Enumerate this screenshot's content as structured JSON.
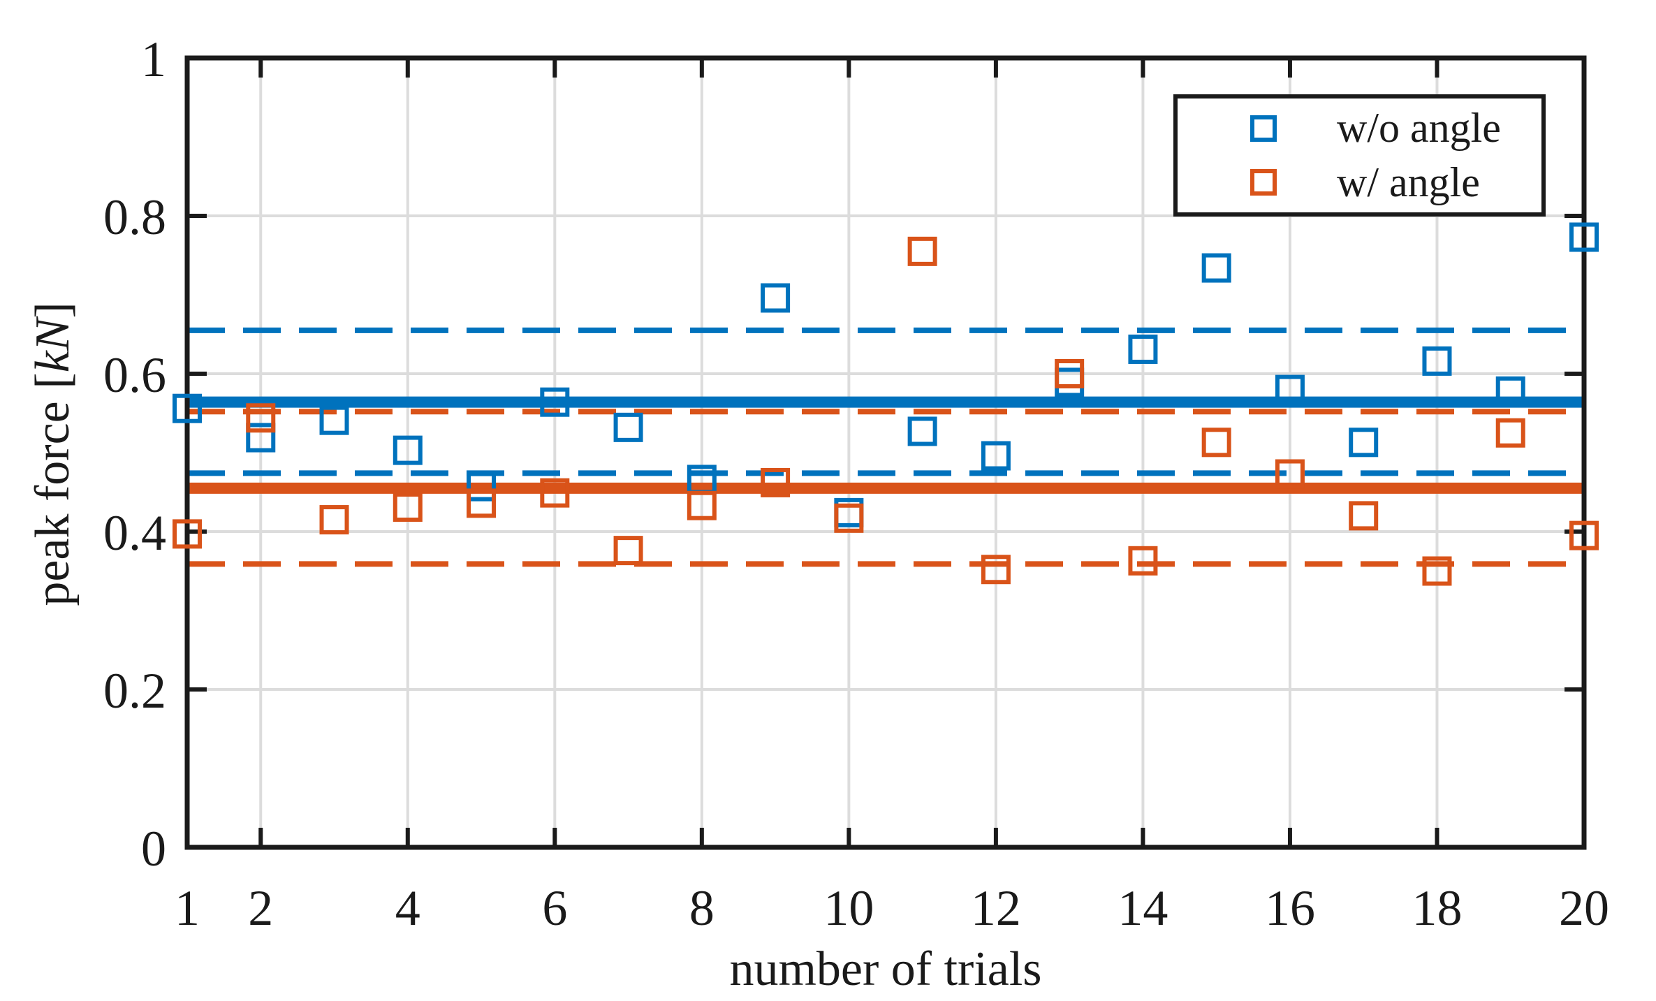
{
  "colors": {
    "background": "#ffffff",
    "axis": "#1a1a1a",
    "grid": "#dcdcdc",
    "series_blue": "#0072BD",
    "series_orange": "#D95319"
  },
  "chart_data": {
    "type": "scatter",
    "title": "",
    "xlabel": "number of trials",
    "ylabel": "peak force [kN]",
    "ylabel_prefix": "peak force [",
    "ylabel_unit": "kN",
    "ylabel_suffix": "]",
    "xlim": [
      1,
      20
    ],
    "ylim": [
      0,
      1
    ],
    "xticks": [
      1,
      2,
      4,
      6,
      8,
      10,
      12,
      14,
      16,
      18,
      20
    ],
    "xtick_labels": [
      "1",
      "2",
      "4",
      "6",
      "8",
      "10",
      "12",
      "14",
      "16",
      "18",
      "20"
    ],
    "yticks": [
      0,
      0.2,
      0.4,
      0.6,
      0.8,
      1
    ],
    "ytick_labels": [
      "0",
      "0.2",
      "0.4",
      "0.6",
      "0.8",
      "1"
    ],
    "grid": true,
    "legend": {
      "position": "top-right",
      "entries": [
        "w/o angle",
        "w/ angle"
      ]
    },
    "x": [
      1,
      2,
      3,
      4,
      5,
      6,
      7,
      8,
      9,
      10,
      11,
      12,
      13,
      14,
      15,
      16,
      17,
      18,
      19,
      20
    ],
    "series": [
      {
        "name": "w/o angle",
        "color": "#0072BD",
        "marker": "open-square",
        "values": [
          0.556,
          0.519,
          0.541,
          0.503,
          0.457,
          0.564,
          0.532,
          0.466,
          0.696,
          0.424,
          0.527,
          0.496,
          0.589,
          0.631,
          0.734,
          0.58,
          0.513,
          0.616,
          0.578,
          0.773
        ],
        "mean": 0.564,
        "mean_plus_std": 0.655,
        "mean_minus_std": 0.474
      },
      {
        "name": "w/ angle",
        "color": "#D95319",
        "marker": "open-square",
        "values": [
          0.397,
          0.544,
          0.415,
          0.431,
          0.436,
          0.449,
          0.376,
          0.433,
          0.462,
          0.417,
          0.755,
          0.352,
          0.6,
          0.363,
          0.513,
          0.473,
          0.42,
          0.35,
          0.525,
          0.395
        ],
        "mean": 0.455,
        "mean_plus_std": 0.552,
        "mean_minus_std": 0.359
      }
    ]
  }
}
